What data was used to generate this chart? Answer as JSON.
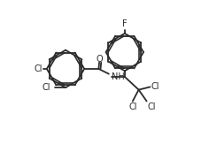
{
  "background_color": "#ffffff",
  "line_color": "#2a2a2a",
  "line_width": 1.3,
  "font_size": 7.0,
  "xlim": [
    -1.0,
    11.5
  ],
  "ylim": [
    0.5,
    9.5
  ]
}
